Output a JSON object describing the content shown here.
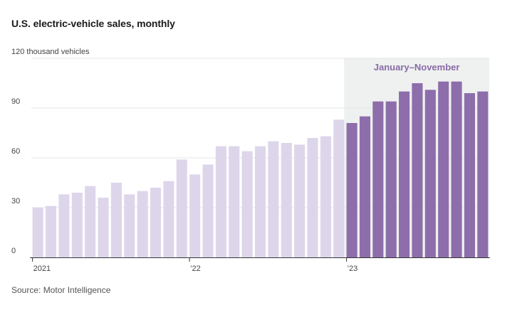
{
  "chart_data": {
    "type": "bar",
    "title": "U.S. electric-vehicle sales, monthly",
    "ylabel": "thousand vehicles",
    "ylim": [
      0,
      120
    ],
    "yticks": [
      0,
      30,
      60,
      90,
      120
    ],
    "ytick_labels": [
      "0",
      "30",
      "60",
      "90",
      "120 thousand vehicles"
    ],
    "x_tick_labels": [
      {
        "index": 0,
        "label": "2021"
      },
      {
        "index": 12,
        "label": "’22"
      },
      {
        "index": 24,
        "label": "’23"
      }
    ],
    "categories": [
      "Jan 2021",
      "Feb 2021",
      "Mar 2021",
      "Apr 2021",
      "May 2021",
      "Jun 2021",
      "Jul 2021",
      "Aug 2021",
      "Sep 2021",
      "Oct 2021",
      "Nov 2021",
      "Dec 2021",
      "Jan 2022",
      "Feb 2022",
      "Mar 2022",
      "Apr 2022",
      "May 2022",
      "Jun 2022",
      "Jul 2022",
      "Aug 2022",
      "Sep 2022",
      "Oct 2022",
      "Nov 2022",
      "Dec 2022",
      "Jan 2023",
      "Feb 2023",
      "Mar 2023",
      "Apr 2023",
      "May 2023",
      "Jun 2023",
      "Jul 2023",
      "Aug 2023",
      "Sep 2023",
      "Oct 2023",
      "Nov 2023"
    ],
    "values": [
      30,
      31,
      38,
      39,
      43,
      36,
      45,
      38,
      40,
      42,
      46,
      59,
      50,
      56,
      67,
      67,
      64,
      67,
      70,
      69,
      68,
      72,
      73,
      83,
      81,
      85,
      94,
      94,
      100,
      105,
      101,
      106,
      106,
      99,
      100
    ],
    "highlight": {
      "label": "January–November",
      "start_index": 24,
      "end_index": 34
    },
    "colors": {
      "past_bar": "#ddd6eb",
      "highlight_bar": "#8e6dab",
      "highlight_bg": "#eef1f0",
      "highlight_text": "#8a6aa7",
      "gridline": "#e4e4e4",
      "baseline": "#333333"
    }
  },
  "footer": {
    "source": "Source: Motor Intelligence"
  }
}
